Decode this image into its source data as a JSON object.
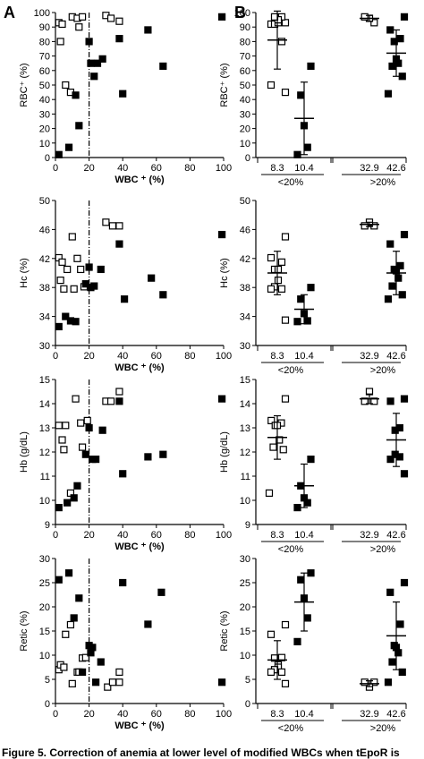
{
  "figure": {
    "panel_labels": [
      "A",
      "B"
    ],
    "caption": "Figure 5. Correction of anemia at lower level of modified WBCs when tEpoR is"
  },
  "chart_data": [
    {
      "type": "scatter",
      "panel": "A",
      "xlabel": "WBC ⁺ (%)",
      "ylabel": "RBC⁺ (%)",
      "xlim": [
        0,
        100
      ],
      "ylim": [
        0,
        100
      ],
      "xticks": [
        0,
        20,
        40,
        60,
        80,
        100
      ],
      "yticks": [
        0,
        10,
        20,
        30,
        40,
        50,
        60,
        70,
        80,
        90,
        100
      ],
      "threshold_x": 20,
      "series": [
        {
          "marker": "open-square",
          "points": [
            [
              2,
              93
            ],
            [
              4,
              92
            ],
            [
              3,
              80
            ],
            [
              6,
              50
            ],
            [
              9,
              45
            ],
            [
              10,
              97
            ],
            [
              13,
              96
            ],
            [
              14,
              90
            ],
            [
              16,
              97
            ],
            [
              30,
              98
            ],
            [
              33,
              96
            ],
            [
              38,
              94
            ]
          ]
        },
        {
          "marker": "filled-square",
          "points": [
            [
              2,
              2
            ],
            [
              8,
              7
            ],
            [
              12,
              43
            ],
            [
              14,
              22
            ],
            [
              20,
              80
            ],
            [
              21,
              65
            ],
            [
              23,
              56
            ],
            [
              25,
              65
            ],
            [
              28,
              68
            ],
            [
              38,
              82
            ],
            [
              40,
              44
            ],
            [
              55,
              88
            ],
            [
              64,
              63
            ],
            [
              99,
              97
            ]
          ]
        }
      ]
    },
    {
      "type": "scatter",
      "panel": "A",
      "xlabel": "WBC ⁺ (%)",
      "ylabel": "Hc (%)",
      "xlim": [
        0,
        100
      ],
      "ylim": [
        30,
        50
      ],
      "xticks": [
        0,
        20,
        40,
        60,
        80,
        100
      ],
      "yticks": [
        30,
        34,
        38,
        42,
        46,
        50
      ],
      "threshold_x": 20,
      "series": [
        {
          "marker": "open-square",
          "points": [
            [
              2,
              42.1
            ],
            [
              3,
              39
            ],
            [
              4,
              41.5
            ],
            [
              5,
              37.8
            ],
            [
              7,
              40.5
            ],
            [
              10,
              45
            ],
            [
              11,
              37.8
            ],
            [
              13,
              42
            ],
            [
              15,
              40.5
            ],
            [
              17,
              38.1
            ],
            [
              30,
              47
            ],
            [
              34,
              46.5
            ],
            [
              38,
              46.5
            ]
          ]
        },
        {
          "marker": "filled-square",
          "points": [
            [
              2,
              32.6
            ],
            [
              6,
              34
            ],
            [
              9,
              33.4
            ],
            [
              12,
              33.3
            ],
            [
              18,
              38.5
            ],
            [
              20,
              40.8
            ],
            [
              21,
              38
            ],
            [
              23,
              38.2
            ],
            [
              27,
              40.5
            ],
            [
              38,
              44
            ],
            [
              41,
              36.4
            ],
            [
              57,
              39.3
            ],
            [
              64,
              37
            ],
            [
              99,
              45.3
            ]
          ]
        }
      ]
    },
    {
      "type": "scatter",
      "panel": "A",
      "xlabel": "WBC ⁺ (%)",
      "ylabel": "Hb (g/dL)",
      "xlim": [
        0,
        100
      ],
      "ylim": [
        9,
        15
      ],
      "xticks": [
        0,
        20,
        40,
        60,
        80,
        100
      ],
      "yticks": [
        9,
        10,
        11,
        12,
        13,
        14,
        15
      ],
      "threshold_x": 20,
      "series": [
        {
          "marker": "open-square",
          "points": [
            [
              2,
              13.1
            ],
            [
              4,
              12.5
            ],
            [
              6,
              13.1
            ],
            [
              5,
              12.1
            ],
            [
              9,
              10.3
            ],
            [
              12,
              14.2
            ],
            [
              15,
              13.2
            ],
            [
              16,
              12.2
            ],
            [
              19,
              13.3
            ],
            [
              30,
              14.1
            ],
            [
              33,
              14.1
            ],
            [
              38,
              14.5
            ]
          ]
        },
        {
          "marker": "filled-square",
          "points": [
            [
              2,
              9.7
            ],
            [
              7,
              9.9
            ],
            [
              11,
              10.1
            ],
            [
              13,
              10.6
            ],
            [
              18,
              11.9
            ],
            [
              20,
              13.0
            ],
            [
              22,
              11.7
            ],
            [
              24,
              11.7
            ],
            [
              28,
              12.9
            ],
            [
              38,
              14.1
            ],
            [
              40,
              11.1
            ],
            [
              55,
              11.8
            ],
            [
              64,
              11.9
            ],
            [
              99,
              14.2
            ]
          ]
        }
      ]
    },
    {
      "type": "scatter",
      "panel": "A",
      "xlabel": "WBC ⁺ (%)",
      "ylabel": "Retic (%)",
      "xlim": [
        0,
        100
      ],
      "ylim": [
        0,
        30
      ],
      "xticks": [
        0,
        20,
        40,
        60,
        80,
        100
      ],
      "yticks": [
        0,
        5,
        10,
        15,
        20,
        25,
        30
      ],
      "threshold_x": 20,
      "series": [
        {
          "marker": "open-square",
          "points": [
            [
              2,
              7
            ],
            [
              3,
              8
            ],
            [
              5,
              7.5
            ],
            [
              6,
              14.3
            ],
            [
              9,
              16.3
            ],
            [
              10,
              4.1
            ],
            [
              13,
              6.5
            ],
            [
              14,
              6.5
            ],
            [
              16,
              9.4
            ],
            [
              18,
              9.5
            ],
            [
              31,
              3.4
            ],
            [
              34,
              4.4
            ],
            [
              38,
              6.5
            ],
            [
              38,
              4.4
            ]
          ]
        },
        {
          "marker": "filled-square",
          "points": [
            [
              2,
              25.6
            ],
            [
              8,
              27
            ],
            [
              11,
              17.7
            ],
            [
              14,
              21.8
            ],
            [
              16,
              6.5
            ],
            [
              20,
              12
            ],
            [
              21,
              10.5
            ],
            [
              22,
              11.6
            ],
            [
              24,
              4.4
            ],
            [
              27,
              8.6
            ],
            [
              40,
              25
            ],
            [
              55,
              16.4
            ],
            [
              63,
              23
            ],
            [
              99,
              4.4
            ]
          ]
        }
      ]
    },
    {
      "type": "scatter",
      "panel": "B",
      "ylabel": "RBC⁺ (%)",
      "ylim": [
        0,
        100
      ],
      "yticks": [
        0,
        10,
        20,
        30,
        40,
        50,
        60,
        70,
        80,
        90,
        100
      ],
      "group_labels": [
        "8.3",
        "10.4",
        "32.9",
        "42.6"
      ],
      "group_headers": [
        "<20%",
        ">20%"
      ],
      "series": [
        {
          "group": "8.3",
          "marker": "open-square",
          "values": [
            93,
            92,
            97,
            92,
            93,
            95,
            97,
            80,
            50,
            45
          ],
          "mean": 81,
          "sd": 20
        },
        {
          "group": "10.4",
          "marker": "filled-square",
          "values": [
            63,
            43,
            22,
            7,
            2
          ],
          "mean": 27,
          "sd": 25
        },
        {
          "group": "32.9",
          "marker": "open-square",
          "values": [
            93,
            96,
            97
          ],
          "mean": 96,
          "sd": 2
        },
        {
          "group": "42.6",
          "marker": "filled-square",
          "values": [
            97,
            88,
            82,
            80,
            68,
            65,
            63,
            56,
            44
          ],
          "mean": 72,
          "sd": 16
        }
      ]
    },
    {
      "type": "scatter",
      "panel": "B",
      "ylabel": "Hc (%)",
      "ylim": [
        30,
        50
      ],
      "yticks": [
        30,
        34,
        38,
        42,
        46,
        50
      ],
      "group_labels": [
        "8.3",
        "10.4",
        "32.9",
        "42.6"
      ],
      "group_headers": [
        "<20%",
        ">20%"
      ],
      "series": [
        {
          "group": "8.3",
          "marker": "open-square",
          "values": [
            45,
            42.1,
            41.5,
            40.5,
            40.5,
            39,
            38.1,
            37.8,
            37.8,
            33.5
          ],
          "mean": 40,
          "sd": 3
        },
        {
          "group": "10.4",
          "marker": "filled-square",
          "values": [
            38,
            36.4,
            34.4,
            33.4,
            33.3
          ],
          "mean": 35,
          "sd": 2
        },
        {
          "group": "32.9",
          "marker": "open-square",
          "values": [
            46.5,
            47,
            46.5
          ],
          "mean": 46.7,
          "sd": 0.3
        },
        {
          "group": "42.6",
          "marker": "filled-square",
          "values": [
            45.3,
            44,
            41,
            40.5,
            40.3,
            39.3,
            38.2,
            37,
            36.4
          ],
          "mean": 40,
          "sd": 3
        }
      ]
    },
    {
      "type": "scatter",
      "panel": "B",
      "ylabel": "Hb (g/dL)",
      "ylim": [
        9,
        15
      ],
      "yticks": [
        9,
        10,
        11,
        12,
        13,
        14,
        15
      ],
      "group_labels": [
        "8.3",
        "10.4",
        "32.9",
        "42.6"
      ],
      "group_headers": [
        "<20%",
        ">20%"
      ],
      "series": [
        {
          "group": "8.3",
          "marker": "open-square",
          "values": [
            14.2,
            13.3,
            13.2,
            13.1,
            13.1,
            12.5,
            12.2,
            12.1,
            10.3
          ],
          "mean": 12.6,
          "sd": 0.9
        },
        {
          "group": "10.4",
          "marker": "filled-square",
          "values": [
            11.7,
            10.6,
            10.1,
            9.9,
            9.7
          ],
          "mean": 10.6,
          "sd": 0.9
        },
        {
          "group": "32.9",
          "marker": "open-square",
          "values": [
            14.1,
            14.5,
            14.1
          ],
          "mean": 14.2,
          "sd": 0.2
        },
        {
          "group": "42.6",
          "marker": "filled-square",
          "values": [
            14.2,
            14.1,
            13.0,
            12.9,
            11.9,
            11.8,
            11.7,
            11.1
          ],
          "mean": 12.5,
          "sd": 1.1
        }
      ]
    },
    {
      "type": "scatter",
      "panel": "B",
      "ylabel": "Retic (%)",
      "ylim": [
        0,
        30
      ],
      "yticks": [
        0,
        5,
        10,
        15,
        20,
        25,
        30
      ],
      "group_labels": [
        "8.3",
        "10.4",
        "32.9",
        "42.6"
      ],
      "group_headers": [
        "<20%",
        ">20%"
      ],
      "series": [
        {
          "group": "8.3",
          "marker": "open-square",
          "values": [
            16.3,
            14.3,
            9.5,
            9.4,
            8,
            7.5,
            7,
            6.5,
            6.5,
            4.1
          ],
          "mean": 9,
          "sd": 4
        },
        {
          "group": "10.4",
          "marker": "filled-square",
          "values": [
            27,
            25.6,
            21.8,
            17.7,
            12.8
          ],
          "mean": 21,
          "sd": 6
        },
        {
          "group": "32.9",
          "marker": "open-square",
          "values": [
            4.4,
            3.4,
            4.4
          ],
          "mean": 4.1,
          "sd": 0.6
        },
        {
          "group": "42.6",
          "marker": "filled-square",
          "values": [
            25,
            23,
            16.4,
            12,
            11.6,
            10.5,
            8.6,
            6.5,
            4.4
          ],
          "mean": 14,
          "sd": 7
        }
      ]
    }
  ]
}
